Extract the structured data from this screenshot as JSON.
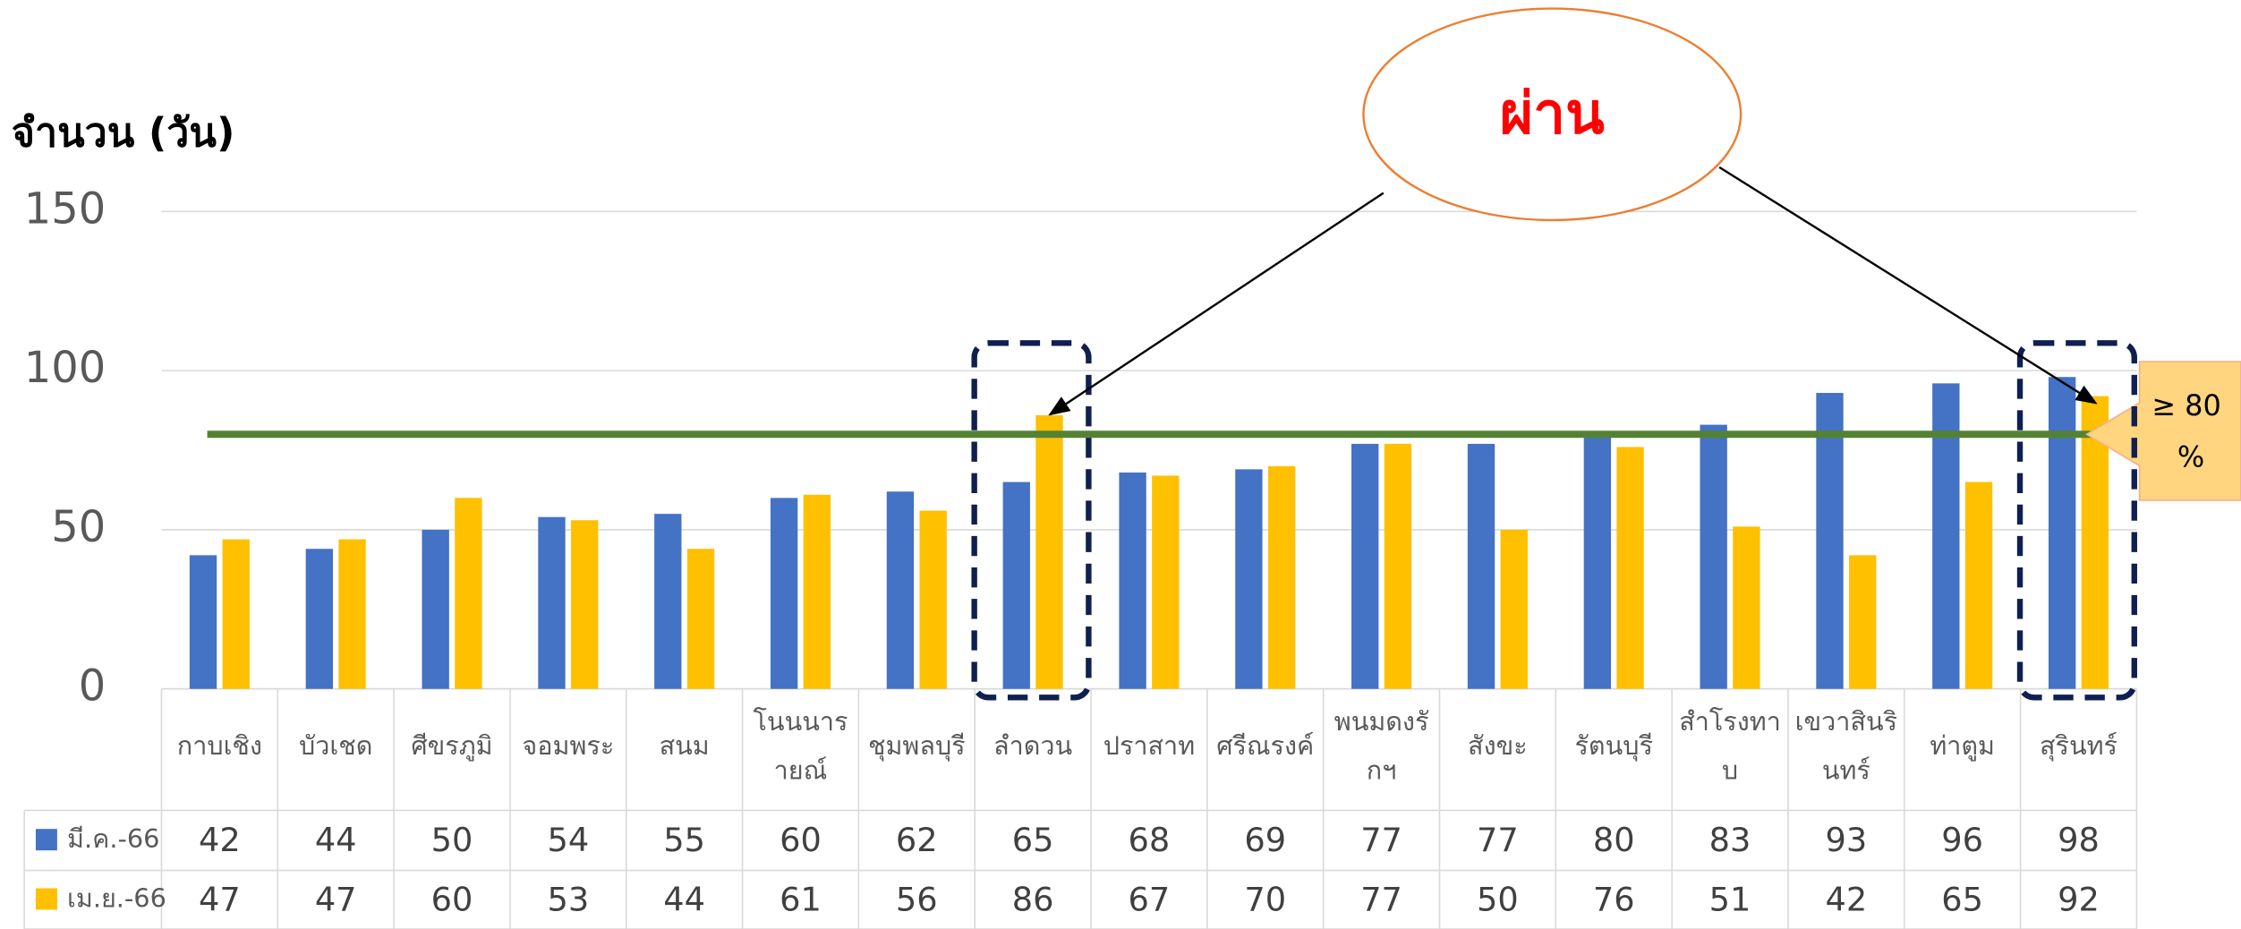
{
  "chart_data": {
    "type": "bar",
    "y_label": "จำนวน (วัน)",
    "categories": [
      "กาบเชิง",
      "บัวเชด",
      "ศีขรภูมิ",
      "จอมพระ",
      "สนม",
      "โนนนารายณ์",
      "ชุมพลบุรี",
      "ลำดวน",
      "ปราสาท",
      "ศรีณรงค์",
      "พนมดงรักฯ",
      "สังขะ",
      "รัตนบุรี",
      "สำโรงทาบ",
      "เขวาสินรินทร์",
      "ท่าตูม",
      "สุรินทร์"
    ],
    "series": [
      {
        "name": "มี.ค.-66",
        "color": "#4472c4",
        "values": [
          42,
          44,
          50,
          54,
          55,
          60,
          62,
          65,
          68,
          69,
          77,
          77,
          80,
          83,
          93,
          96,
          98
        ]
      },
      {
        "name": "เม.ย.-66",
        "color": "#ffc000",
        "values": [
          47,
          47,
          60,
          53,
          44,
          61,
          56,
          86,
          67,
          70,
          77,
          50,
          76,
          51,
          42,
          65,
          92
        ]
      }
    ],
    "ylim": [
      0,
      150
    ],
    "yticks": [
      0,
      50,
      100,
      150
    ],
    "grid": true,
    "threshold": {
      "value": 80,
      "label": "≥ 80 %",
      "color": "#548235"
    },
    "annotation": {
      "text": "ผ่าน",
      "targets": [
        7,
        16
      ]
    }
  }
}
